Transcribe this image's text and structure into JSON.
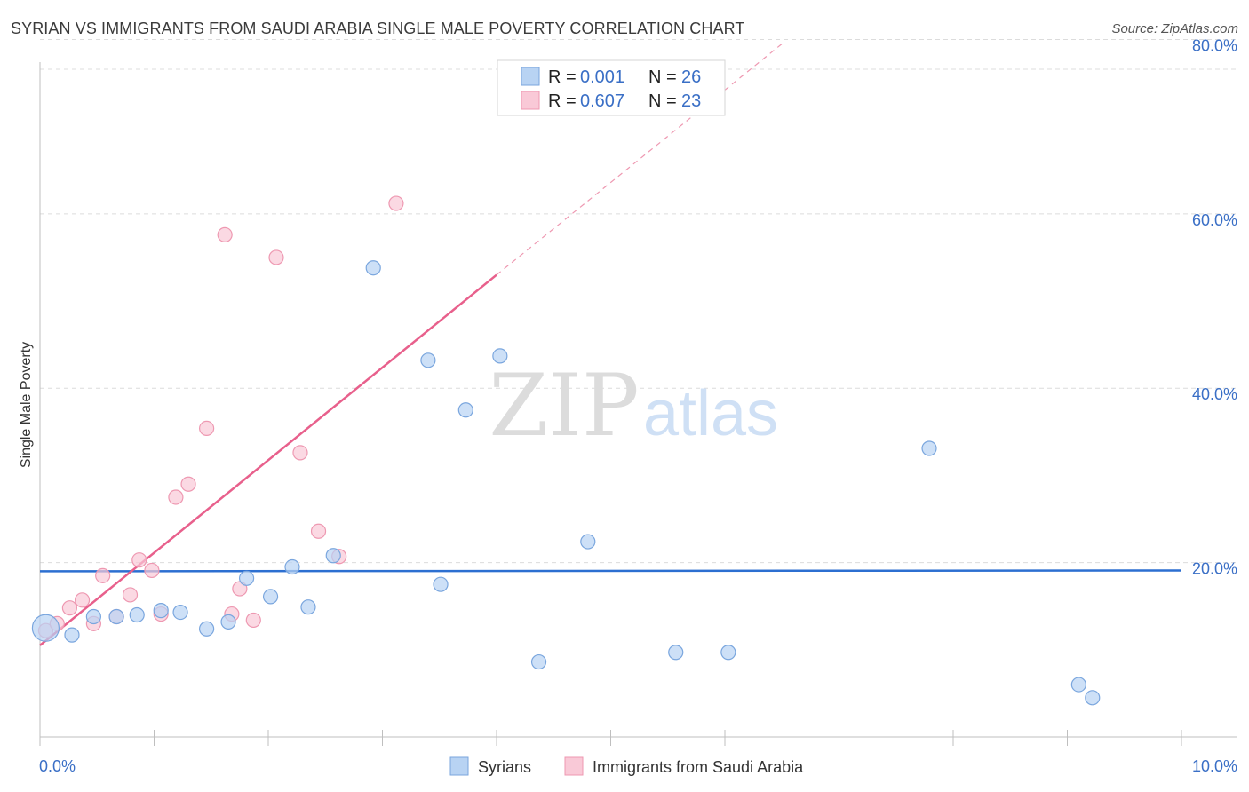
{
  "header": {
    "title": "SYRIAN VS IMMIGRANTS FROM SAUDI ARABIA SINGLE MALE POVERTY CORRELATION CHART",
    "source": "Source: ZipAtlas.com"
  },
  "watermark": {
    "zip": "ZIP",
    "atlas": "atlas"
  },
  "colors": {
    "syrians_fill": "#b8d3f3",
    "syrians_stroke": "#7aa6de",
    "syrians_line": "#2c6fd1",
    "saudi_fill": "#f9c9d7",
    "saudi_stroke": "#ee98b1",
    "saudi_line": "#e8608c",
    "tick_text": "#3a6fc6",
    "grid": "#dcdcdc"
  },
  "legend": {
    "rows": [
      {
        "r_label": "R = ",
        "r_value": "0.001",
        "n_label": "N = ",
        "n_value": "26"
      },
      {
        "r_label": "R = ",
        "r_value": "0.607",
        "n_label": "N = ",
        "n_value": "23"
      }
    ]
  },
  "chart_data": {
    "type": "scatter",
    "title": "SYRIAN VS IMMIGRANTS FROM SAUDI ARABIA SINGLE MALE POVERTY CORRELATION CHART",
    "xlabel": "",
    "ylabel": "Single Male Poverty",
    "xlim": [
      0,
      10
    ],
    "ylim": [
      0,
      83
    ],
    "x_tick_labels": [
      "0.0%",
      "10.0%"
    ],
    "y_ticks": [
      20,
      40,
      60,
      80
    ],
    "y_tick_labels": [
      "20.0%",
      "40.0%",
      "60.0%",
      "80.0%"
    ],
    "grid": true,
    "series": [
      {
        "name": "Syrians",
        "points": [
          {
            "x": 0.05,
            "y": 12.5,
            "big": true
          },
          {
            "x": 0.28,
            "y": 11.7
          },
          {
            "x": 0.47,
            "y": 13.8
          },
          {
            "x": 0.67,
            "y": 13.8
          },
          {
            "x": 0.85,
            "y": 14.0
          },
          {
            "x": 1.06,
            "y": 14.5
          },
          {
            "x": 1.23,
            "y": 14.3
          },
          {
            "x": 1.46,
            "y": 12.4
          },
          {
            "x": 1.65,
            "y": 13.2
          },
          {
            "x": 1.81,
            "y": 18.2
          },
          {
            "x": 2.02,
            "y": 16.1
          },
          {
            "x": 2.21,
            "y": 19.5
          },
          {
            "x": 2.35,
            "y": 14.9
          },
          {
            "x": 2.57,
            "y": 20.8
          },
          {
            "x": 2.92,
            "y": 53.8
          },
          {
            "x": 3.4,
            "y": 43.2
          },
          {
            "x": 3.51,
            "y": 17.5
          },
          {
            "x": 3.73,
            "y": 37.5
          },
          {
            "x": 4.03,
            "y": 43.7
          },
          {
            "x": 4.37,
            "y": 8.6
          },
          {
            "x": 4.8,
            "y": 22.4
          },
          {
            "x": 5.57,
            "y": 9.7
          },
          {
            "x": 6.03,
            "y": 9.7
          },
          {
            "x": 7.79,
            "y": 33.1
          },
          {
            "x": 9.1,
            "y": 6.0
          },
          {
            "x": 9.22,
            "y": 4.5
          }
        ],
        "trend": {
          "x": [
            0,
            10
          ],
          "y": [
            19.0,
            19.1
          ]
        }
      },
      {
        "name": "Immigrants from Saudi Arabia",
        "points": [
          {
            "x": 0.05,
            "y": 12.2
          },
          {
            "x": 0.15,
            "y": 13.0
          },
          {
            "x": 0.26,
            "y": 14.8
          },
          {
            "x": 0.37,
            "y": 15.7
          },
          {
            "x": 0.47,
            "y": 13.0
          },
          {
            "x": 0.55,
            "y": 18.5
          },
          {
            "x": 0.67,
            "y": 13.8
          },
          {
            "x": 0.79,
            "y": 16.3
          },
          {
            "x": 0.87,
            "y": 20.3
          },
          {
            "x": 0.98,
            "y": 19.1
          },
          {
            "x": 1.06,
            "y": 14.1
          },
          {
            "x": 1.19,
            "y": 27.5
          },
          {
            "x": 1.3,
            "y": 29.0
          },
          {
            "x": 1.46,
            "y": 35.4
          },
          {
            "x": 1.62,
            "y": 57.6
          },
          {
            "x": 1.68,
            "y": 14.1
          },
          {
            "x": 1.75,
            "y": 17.0
          },
          {
            "x": 1.87,
            "y": 13.4
          },
          {
            "x": 2.07,
            "y": 55.0
          },
          {
            "x": 2.28,
            "y": 32.6
          },
          {
            "x": 2.44,
            "y": 23.6
          },
          {
            "x": 2.62,
            "y": 20.7
          },
          {
            "x": 3.12,
            "y": 61.2
          }
        ],
        "trend": {
          "x": [
            0.0,
            4.0
          ],
          "y": [
            10.5,
            53.0
          ]
        },
        "trend_extension": {
          "x": [
            4.0,
            6.5
          ],
          "y": [
            53.0,
            79.5
          ]
        }
      }
    ]
  },
  "bottom_legend": {
    "items": [
      {
        "label": "Syrians"
      },
      {
        "label": "Immigrants from Saudi Arabia"
      }
    ]
  }
}
